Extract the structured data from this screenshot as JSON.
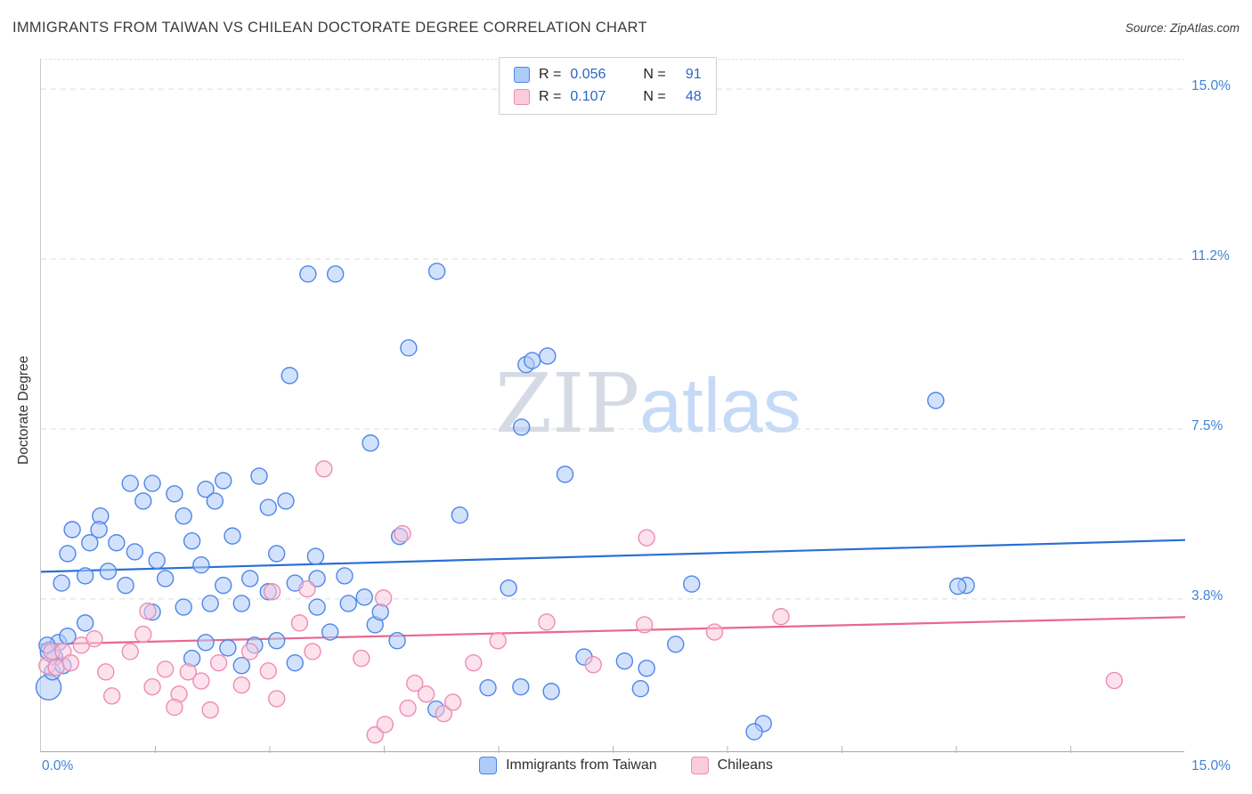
{
  "title": "IMMIGRANTS FROM TAIWAN VS CHILEAN DOCTORATE DEGREE CORRELATION CHART",
  "source": "Source: ZipAtlas.com",
  "watermark": {
    "part1": "ZIP",
    "part2": "atlas"
  },
  "colors": {
    "accent_blue": "#2a66c8",
    "tick_label_blue": "#4183d7",
    "grid_gray": "#dcdcdc"
  },
  "legend_box": {
    "rows": [
      {
        "r_label": "R =",
        "r_value": "0.056",
        "n_label": "N =",
        "n_value": "91"
      },
      {
        "r_label": "R =",
        "r_value": "0.107",
        "n_label": "N =",
        "n_value": "48"
      }
    ]
  },
  "axes": {
    "y_label": "Doctorate Degree",
    "x_min_label": "0.0%",
    "x_max_label": "15.0%"
  },
  "chart_data": {
    "type": "scatter",
    "x_range": [
      0,
      15
    ],
    "y_range": [
      0.35,
      15.65
    ],
    "x_ticks": [
      1.5,
      3,
      4.5,
      6,
      7.5,
      9,
      10.5,
      12,
      13.5
    ],
    "gridlines": [
      {
        "value": 15.0,
        "label": "15.0%"
      },
      {
        "value": 11.25,
        "label": "11.2%"
      },
      {
        "value": 7.5,
        "label": "7.5%"
      },
      {
        "value": 3.75,
        "label": "3.8%"
      }
    ],
    "series": [
      {
        "id": "taiwan",
        "name": "Immigrants from Taiwan",
        "R": 0.056,
        "N": 91,
        "fill": "#aecbfa",
        "stroke": "#4e86e8",
        "line_color": "#2a6fd4",
        "trend": {
          "x1": 0,
          "y1": 4.35,
          "x2": 15,
          "y2": 5.05
        },
        "points": [
          [
            0.1,
            1.8,
            14
          ],
          [
            0.15,
            2.14
          ],
          [
            0.18,
            2.47
          ],
          [
            0.12,
            2.59,
            11
          ],
          [
            0.23,
            2.79
          ],
          [
            0.08,
            2.73
          ],
          [
            0.29,
            2.28
          ],
          [
            0.35,
            2.93
          ],
          [
            0.27,
            4.1
          ],
          [
            0.35,
            4.75
          ],
          [
            0.41,
            5.28
          ],
          [
            0.58,
            4.26
          ],
          [
            0.64,
            4.99
          ],
          [
            12.13,
            4.05
          ],
          [
            0.78,
            5.58
          ],
          [
            0.88,
            4.36
          ],
          [
            0.99,
            4.99
          ],
          [
            1.11,
            4.05
          ],
          [
            1.23,
            4.79
          ],
          [
            12.02,
            4.03
          ],
          [
            0.58,
            3.22
          ],
          [
            9.47,
            1.0
          ],
          [
            1.17,
            6.3
          ],
          [
            1.46,
            6.3
          ],
          [
            1.34,
            5.91
          ],
          [
            1.75,
            6.07
          ],
          [
            2.16,
            6.17
          ],
          [
            2.28,
            5.91
          ],
          [
            2.39,
            6.36
          ],
          [
            2.86,
            6.46
          ],
          [
            2.98,
            5.77
          ],
          [
            3.21,
            5.91
          ],
          [
            0.76,
            5.28
          ],
          [
            1.87,
            5.58
          ],
          [
            1.98,
            5.03
          ],
          [
            2.51,
            5.14
          ],
          [
            1.52,
            4.6
          ],
          [
            1.63,
            4.2
          ],
          [
            2.1,
            4.5
          ],
          [
            2.39,
            4.05
          ],
          [
            2.74,
            4.2
          ],
          [
            3.09,
            4.75
          ],
          [
            3.33,
            4.1
          ],
          [
            3.62,
            4.2
          ],
          [
            2.98,
            3.91
          ],
          [
            2.63,
            3.65
          ],
          [
            2.22,
            3.65
          ],
          [
            1.87,
            3.57
          ],
          [
            1.46,
            3.46
          ],
          [
            3.62,
            3.57
          ],
          [
            4.03,
            3.65
          ],
          [
            3.79,
            3.02
          ],
          [
            4.38,
            3.18
          ],
          [
            4.67,
            2.83
          ],
          [
            3.09,
            2.83
          ],
          [
            2.8,
            2.73
          ],
          [
            2.45,
            2.67
          ],
          [
            2.16,
            2.79
          ],
          [
            1.98,
            2.44
          ],
          [
            2.63,
            2.28
          ],
          [
            3.33,
            2.34
          ],
          [
            3.5,
            10.92
          ],
          [
            3.86,
            10.92
          ],
          [
            5.19,
            10.98
          ],
          [
            4.82,
            9.29
          ],
          [
            3.26,
            8.68
          ],
          [
            6.36,
            8.92
          ],
          [
            6.44,
            9.01
          ],
          [
            6.64,
            9.11
          ],
          [
            6.3,
            7.54
          ],
          [
            4.32,
            7.19
          ],
          [
            6.87,
            6.5
          ],
          [
            5.49,
            5.6
          ],
          [
            4.7,
            5.13
          ],
          [
            3.6,
            4.69
          ],
          [
            11.73,
            8.13
          ],
          [
            6.13,
            3.99
          ],
          [
            4.45,
            3.46
          ],
          [
            4.24,
            3.79
          ],
          [
            3.98,
            4.26
          ],
          [
            8.53,
            4.08
          ],
          [
            8.32,
            2.75
          ],
          [
            7.86,
            1.77
          ],
          [
            7.94,
            2.22
          ],
          [
            7.65,
            2.38
          ],
          [
            7.12,
            2.47
          ],
          [
            5.86,
            1.79
          ],
          [
            6.29,
            1.81
          ],
          [
            6.69,
            1.71
          ],
          [
            5.18,
            1.32
          ],
          [
            9.35,
            0.82
          ]
        ]
      },
      {
        "id": "chilean",
        "name": "Chileans",
        "R": 0.107,
        "N": 48,
        "fill": "#f9cbdd",
        "stroke": "#ee8cb2",
        "line_color": "#e8688f",
        "trend": {
          "x1": 0,
          "y1": 2.75,
          "x2": 15,
          "y2": 3.35
        },
        "points": [
          [
            0.08,
            2.28
          ],
          [
            0.14,
            2.59
          ],
          [
            0.2,
            2.24
          ],
          [
            0.29,
            2.59
          ],
          [
            0.39,
            2.34
          ],
          [
            0.53,
            2.73
          ],
          [
            0.7,
            2.87
          ],
          [
            0.85,
            2.14
          ],
          [
            0.93,
            1.61
          ],
          [
            1.17,
            2.59
          ],
          [
            1.34,
            2.97
          ],
          [
            1.46,
            1.81
          ],
          [
            1.63,
            2.2
          ],
          [
            1.81,
            1.65
          ],
          [
            1.93,
            2.14
          ],
          [
            2.1,
            1.94
          ],
          [
            2.33,
            2.34
          ],
          [
            1.4,
            3.48
          ],
          [
            1.75,
            1.36
          ],
          [
            2.22,
            1.3
          ],
          [
            2.63,
            1.85
          ],
          [
            2.98,
            2.16
          ],
          [
            3.09,
            1.55
          ],
          [
            2.74,
            2.59
          ],
          [
            3.39,
            3.22
          ],
          [
            3.56,
            2.59
          ],
          [
            3.03,
            3.91
          ],
          [
            3.49,
            3.97
          ],
          [
            3.71,
            6.62
          ],
          [
            4.2,
            2.44
          ],
          [
            4.38,
            0.75
          ],
          [
            4.49,
            3.77
          ],
          [
            4.74,
            5.19
          ],
          [
            4.9,
            1.89
          ],
          [
            5.05,
            1.65
          ],
          [
            5.28,
            1.22
          ],
          [
            5.4,
            1.47
          ],
          [
            4.81,
            1.34
          ],
          [
            4.51,
            0.98
          ],
          [
            5.67,
            2.34
          ],
          [
            5.99,
            2.83
          ],
          [
            6.63,
            3.24
          ],
          [
            7.24,
            2.3
          ],
          [
            7.91,
            3.18
          ],
          [
            7.94,
            5.1
          ],
          [
            8.83,
            3.02
          ],
          [
            9.7,
            3.36
          ],
          [
            14.07,
            1.95
          ]
        ]
      }
    ]
  }
}
